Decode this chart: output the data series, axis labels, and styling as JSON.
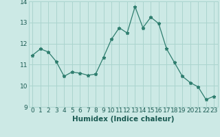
{
  "x": [
    0,
    1,
    2,
    3,
    4,
    5,
    6,
    7,
    8,
    9,
    10,
    11,
    12,
    13,
    14,
    15,
    16,
    17,
    18,
    19,
    20,
    21,
    22,
    23
  ],
  "y": [
    11.45,
    11.75,
    11.6,
    11.15,
    10.45,
    10.65,
    10.6,
    10.5,
    10.55,
    11.35,
    12.2,
    12.75,
    12.5,
    13.75,
    12.75,
    13.25,
    12.95,
    11.75,
    11.1,
    10.45,
    10.15,
    9.95,
    9.35,
    9.5
  ],
  "line_color": "#2e7d6e",
  "marker": "*",
  "marker_size": 3.5,
  "bg_color": "#cce9e5",
  "grid_color": "#aad4ce",
  "xlabel": "Humidex (Indice chaleur)",
  "xlabel_fontsize": 7.5,
  "tick_fontsize": 6.5,
  "ylim": [
    9,
    14
  ],
  "xlim": [
    -0.5,
    23.5
  ],
  "yticks": [
    9,
    10,
    11,
    12,
    13,
    14
  ],
  "xticks": [
    0,
    1,
    2,
    3,
    4,
    5,
    6,
    7,
    8,
    9,
    10,
    11,
    12,
    13,
    14,
    15,
    16,
    17,
    18,
    19,
    20,
    21,
    22,
    23
  ]
}
